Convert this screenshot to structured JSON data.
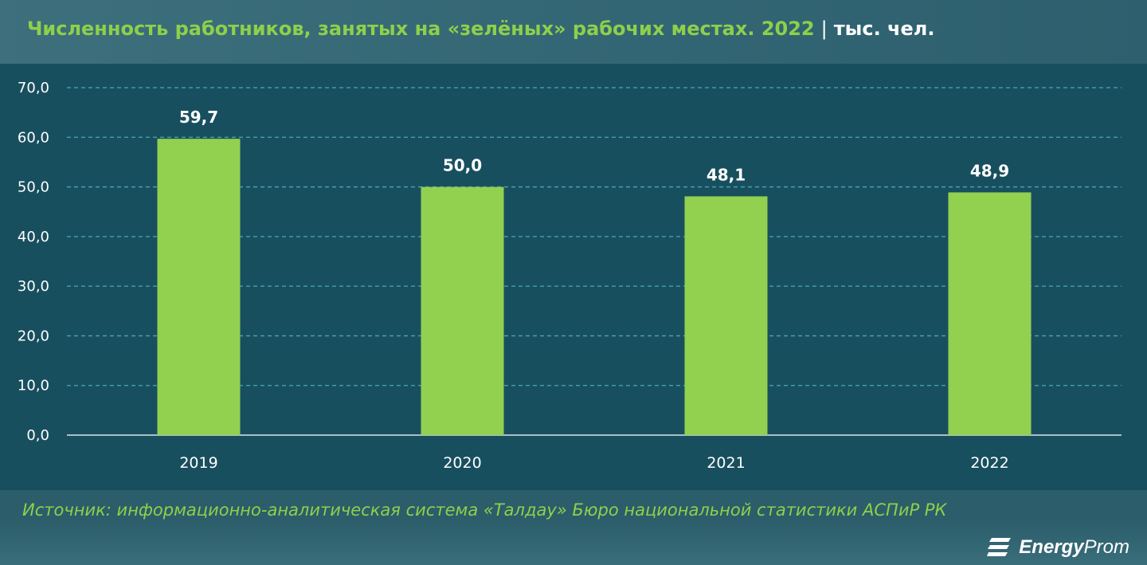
{
  "header": {
    "title_main": "Численность работников, занятых на «зелёных» рабочих местах. 2022",
    "separator": "|",
    "title_unit": "тыс. чел."
  },
  "footer": {
    "source": "Источник: информационно-аналитическая система «Талдау» Бюро национальной статистики АСПиР РК"
  },
  "logo": {
    "icon": "energyprom-logo-icon",
    "text_bold": "Energy",
    "text_regular": "Prom"
  },
  "colors": {
    "bar": "#92d050",
    "plot_background": "#184f5f",
    "title_accent": "#8ed04a",
    "gridline": "#4aa6b8"
  },
  "chart_data": {
    "type": "bar",
    "categories": [
      "2019",
      "2020",
      "2021",
      "2022"
    ],
    "values": [
      59.7,
      50.0,
      48.1,
      48.9
    ],
    "value_labels": [
      "59,7",
      "50,0",
      "48,1",
      "48,9"
    ],
    "ylim": [
      0,
      70
    ],
    "yticks": [
      0,
      10,
      20,
      30,
      40,
      50,
      60,
      70
    ],
    "ytick_labels": [
      "0,0",
      "10,0",
      "20,0",
      "30,0",
      "40,0",
      "50,0",
      "60,0",
      "70,0"
    ],
    "grid": true,
    "legend": "none"
  }
}
